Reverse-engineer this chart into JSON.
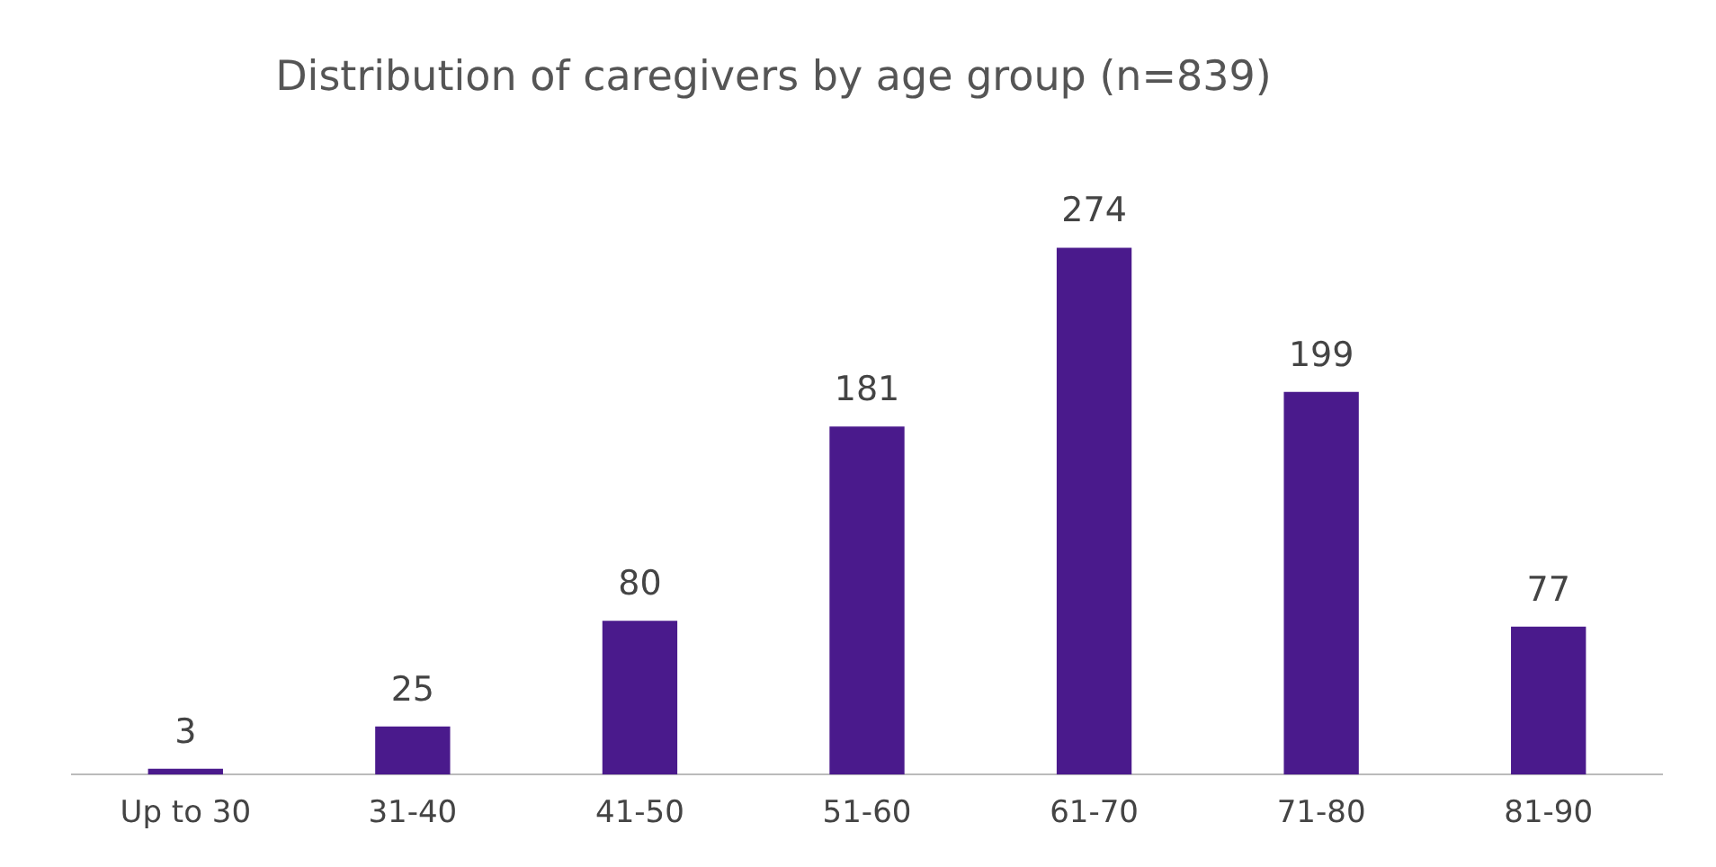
{
  "chart_data": {
    "type": "bar",
    "title": "Distribution of caregivers by age group (n=839)",
    "categories": [
      "Up to 30",
      "31-40",
      "41-50",
      "51-60",
      "61-70",
      "71-80",
      "81-90"
    ],
    "values": [
      3,
      25,
      80,
      181,
      274,
      199,
      77
    ],
    "color": "#4a1a8c",
    "data_labels": true,
    "grid": false,
    "legend": false
  }
}
